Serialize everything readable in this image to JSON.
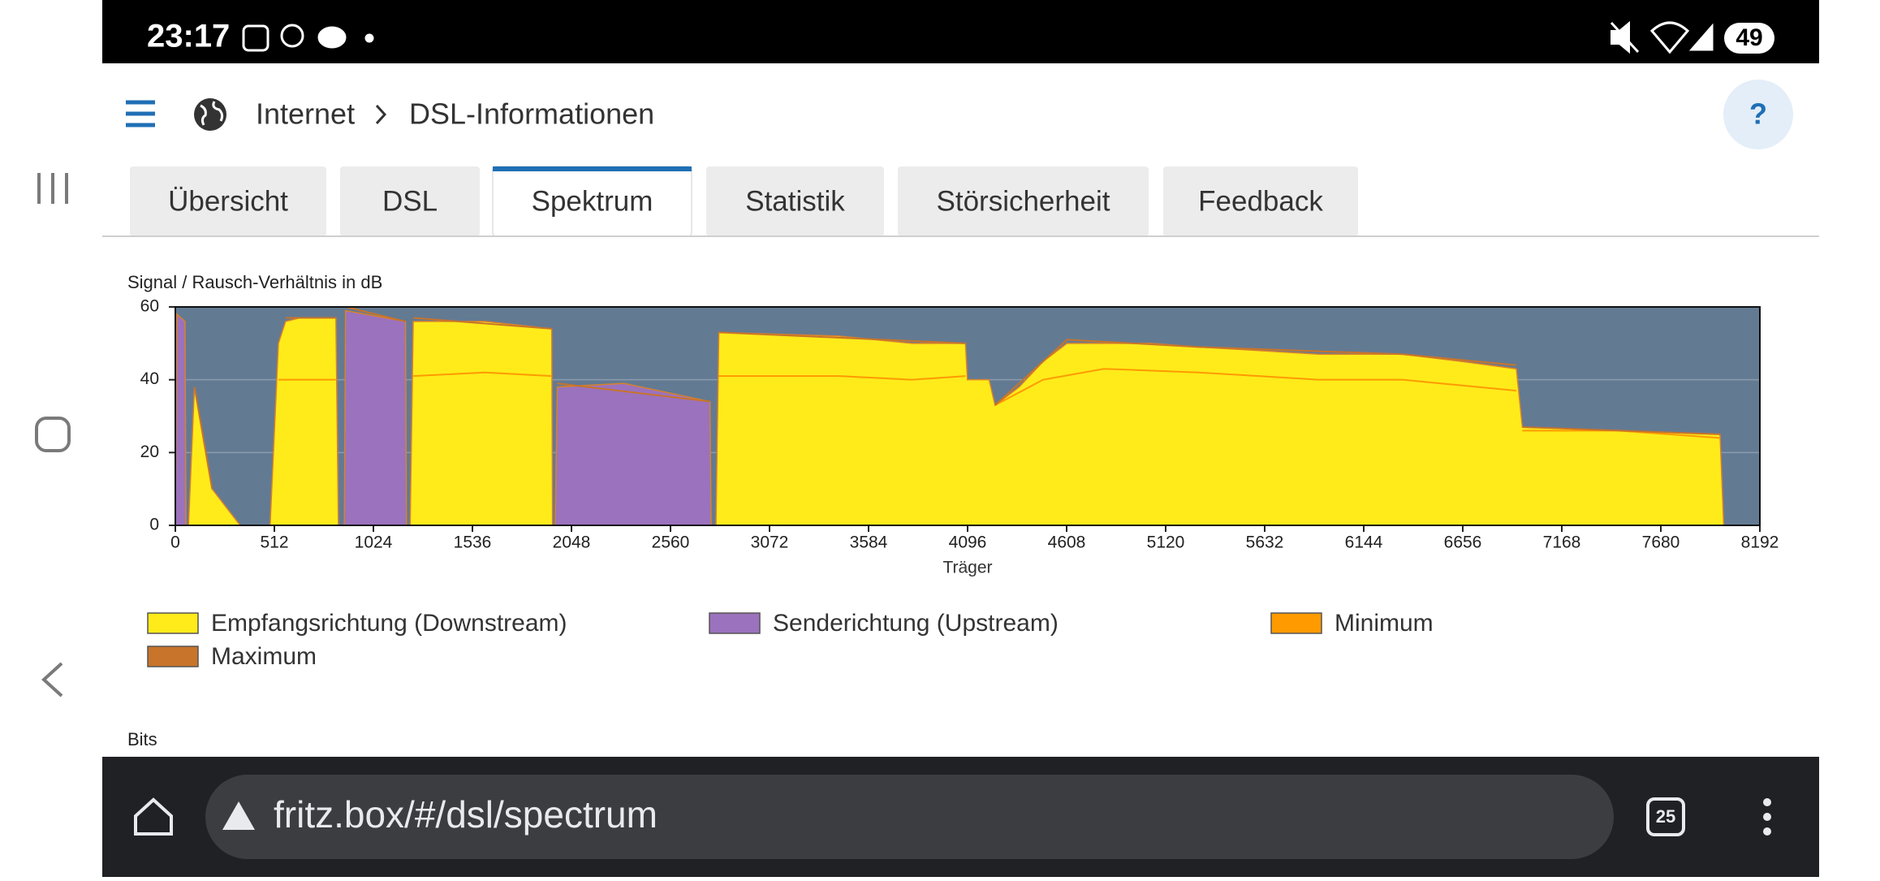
{
  "status_bar": {
    "time": "23:17",
    "battery": "49"
  },
  "header": {
    "breadcrumb": [
      "Internet",
      "DSL-Informationen"
    ],
    "help": "?"
  },
  "tabs": [
    "Übersicht",
    "DSL",
    "Spektrum",
    "Statistik",
    "Störsicherheit",
    "Feedback"
  ],
  "active_tab": 2,
  "chart_data": {
    "type": "area",
    "ylabel": "Signal / Rausch-Verhältnis in dB",
    "xlabel": "Träger",
    "xlim": [
      0,
      8192
    ],
    "ylim": [
      0,
      60
    ],
    "xticks": [
      0,
      512,
      1024,
      1536,
      2048,
      2560,
      3072,
      3584,
      4096,
      4608,
      5120,
      5632,
      6144,
      6656,
      7168,
      7680,
      8192
    ],
    "yticks": [
      0,
      20,
      40,
      60
    ],
    "grid": true,
    "background": "#637a93",
    "legend": "bottom",
    "series": [
      {
        "name": "Empfangsrichtung (Downstream)",
        "color": "#ffeb1a",
        "type": "area",
        "x": [
          68,
          99,
          190,
          335,
          490,
          533,
          570,
          644,
          830,
          843,
          1214,
          1230,
          1600,
          1946,
          1950,
          2795,
          2810,
          3432,
          3808,
          4085,
          4095,
          4207,
          4238,
          4362,
          4486,
          4610,
          5044,
          5292,
          5601,
          5911,
          6345,
          6655,
          6933,
          6964,
          7460,
          7986,
          8005
        ],
        "values": [
          0,
          38,
          10,
          0,
          0,
          50,
          56,
          57,
          57,
          0,
          0,
          56,
          56,
          54,
          0,
          0,
          53,
          52,
          50,
          50,
          40,
          40,
          33,
          38,
          45,
          50,
          50,
          49,
          48,
          47,
          47,
          45,
          43,
          27,
          26,
          25,
          0
        ]
      },
      {
        "name": "Senderichtung (Upstream)",
        "color": "#9b72bd",
        "type": "area",
        "x": [
          0,
          8,
          50,
          55,
          874,
          880,
          1190,
          1195,
          1964,
          1975,
          2318,
          2764,
          2770
        ],
        "values": [
          0,
          58,
          56,
          0,
          0,
          59,
          56,
          0,
          0,
          38,
          39,
          34,
          0
        ]
      },
      {
        "name": "Minimum",
        "color": "#ff9a00",
        "type": "line",
        "x": [
          533,
          644,
          830,
          1000,
          1230,
          1600,
          1946,
          2300,
          2810,
          3432,
          3808,
          4085,
          4150,
          4238,
          4486,
          4800,
          5292,
          5911,
          6345,
          6933,
          6950,
          6964,
          7460,
          7986
        ],
        "values": [
          40,
          40,
          40,
          null,
          41,
          42,
          41,
          null,
          41,
          41,
          40,
          41,
          null,
          33,
          40,
          43,
          42,
          40,
          40,
          37,
          null,
          26,
          26,
          24
        ]
      },
      {
        "name": "Maximum",
        "color": "#c8742a",
        "type": "line",
        "x": [
          99,
          190,
          300,
          570,
          830,
          860,
          880,
          1190,
          1200,
          1230,
          1946,
          1955,
          1975,
          2764,
          2780,
          2810,
          4085,
          4150,
          4238,
          4610,
          5292,
          6345,
          6933,
          6950,
          6964,
          7986
        ],
        "values": [
          38,
          10,
          null,
          57,
          57,
          null,
          60,
          56,
          null,
          57,
          54,
          null,
          39,
          34,
          null,
          53,
          50,
          null,
          33,
          51,
          49,
          47,
          44,
          null,
          27,
          25
        ]
      }
    ]
  },
  "next_chart_label": "Bits",
  "url_bar": {
    "url": "fritz.box/#/dsl/spectrum",
    "tab_count": "25"
  }
}
